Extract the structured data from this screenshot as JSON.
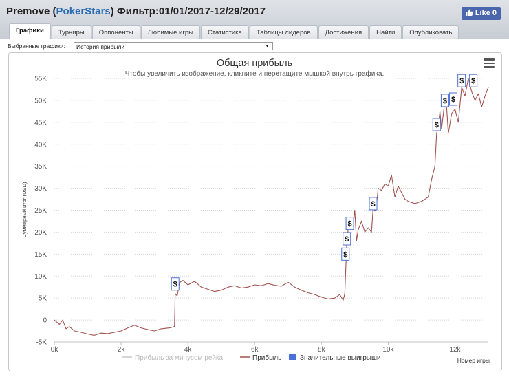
{
  "header": {
    "player": "Premove",
    "site": "PokerStars",
    "filter": "Фильтр:01/01/2017-12/29/2017",
    "like_label": "Like 0"
  },
  "tabs": [
    {
      "label": "Графики",
      "active": true
    },
    {
      "label": "Турниры",
      "active": false
    },
    {
      "label": "Оппоненты",
      "active": false
    },
    {
      "label": "Любимые игры",
      "active": false
    },
    {
      "label": "Статистика",
      "active": false
    },
    {
      "label": "Таблицы лидеров",
      "active": false
    },
    {
      "label": "Достижения",
      "active": false
    },
    {
      "label": "Найти",
      "active": false
    },
    {
      "label": "Опубликовать",
      "active": false
    }
  ],
  "graph_selector": {
    "label": "Выбранные графики:",
    "selected": "История прибыли"
  },
  "menu_icon": "hamburger-menu-icon",
  "colors": {
    "profit_line": "#a0524f",
    "rake_line": "#c8c8c8",
    "big_win_marker": "#4a6fd6",
    "header_site": "#2a6db3",
    "like_button": "#4a66ad"
  },
  "chart_data": {
    "type": "line",
    "title": "Общая прибыль",
    "subtitle": "Чтобы увеличить изображение, кликните и перетащите мышкой внутрь графика.",
    "xlabel": "Номер игры",
    "ylabel": "Суммарный итог (USD)",
    "xlim": [
      0,
      13000
    ],
    "ylim": [
      -5000,
      55000
    ],
    "x_ticks": [
      0,
      2000,
      4000,
      6000,
      8000,
      10000,
      12000
    ],
    "x_tick_labels": [
      "0k",
      "2k",
      "4k",
      "6k",
      "8k",
      "10k",
      "12k"
    ],
    "y_ticks": [
      -5000,
      0,
      5000,
      10000,
      15000,
      20000,
      25000,
      30000,
      35000,
      40000,
      45000,
      50000,
      55000
    ],
    "y_tick_labels": [
      "-5K",
      "0",
      "5K",
      "10K",
      "15K",
      "20K",
      "25K",
      "30K",
      "35K",
      "40K",
      "45K",
      "50K",
      "55K"
    ],
    "grid": true,
    "legend_position": "bottom",
    "legend": [
      "Прибыль за минусом рейка",
      "Прибыль",
      "Значительные выигрыши"
    ],
    "series": [
      {
        "name": "Прибыль",
        "x": [
          0,
          150,
          250,
          350,
          450,
          600,
          800,
          1000,
          1200,
          1400,
          1600,
          1800,
          2000,
          2200,
          2400,
          2600,
          2800,
          3000,
          3200,
          3450,
          3600,
          3620,
          3680,
          3750,
          3850,
          4000,
          4200,
          4400,
          4600,
          4800,
          5000,
          5200,
          5400,
          5600,
          5800,
          6000,
          6200,
          6400,
          6600,
          6800,
          7000,
          7200,
          7400,
          7600,
          7800,
          8000,
          8200,
          8400,
          8550,
          8650,
          8700,
          8720,
          8760,
          8800,
          8850,
          8950,
          9000,
          9050,
          9100,
          9200,
          9300,
          9400,
          9500,
          9550,
          9600,
          9650,
          9700,
          9800,
          9900,
          10000,
          10100,
          10200,
          10300,
          10400,
          10500,
          10600,
          10800,
          11000,
          11200,
          11300,
          11400,
          11450,
          11500,
          11550,
          11600,
          11700,
          11750,
          11800,
          11900,
          12000,
          12100,
          12200,
          12300,
          12400,
          12500,
          12600,
          12700,
          12800,
          12900,
          13000
        ],
        "values": [
          0,
          -1000,
          0,
          -2000,
          -1500,
          -2500,
          -2800,
          -3200,
          -3500,
          -3000,
          -3100,
          -2800,
          -2500,
          -1800,
          -1200,
          -1800,
          -2200,
          -2500,
          -2000,
          -1800,
          -1500,
          6000,
          5500,
          8500,
          9000,
          8000,
          8800,
          7500,
          7000,
          6500,
          6800,
          7500,
          7800,
          7300,
          7500,
          8000,
          7800,
          8300,
          7900,
          7700,
          8600,
          7500,
          6800,
          6200,
          5800,
          5200,
          4800,
          5000,
          5800,
          4500,
          6000,
          10000,
          17500,
          20500,
          22000,
          21500,
          25000,
          18000,
          20500,
          22500,
          20000,
          21000,
          20000,
          25500,
          24800,
          26000,
          30000,
          29500,
          31000,
          30500,
          33000,
          28000,
          30500,
          29000,
          27500,
          27000,
          26500,
          27000,
          28000,
          32000,
          35000,
          42500,
          44000,
          47500,
          43500,
          50000,
          48500,
          42500,
          47000,
          48000,
          45000,
          53000,
          51000,
          55000,
          52000,
          50000,
          51500,
          48500,
          51000,
          53000
        ]
      }
    ],
    "big_wins": [
      {
        "x": 3620,
        "y": 8200
      },
      {
        "x": 8720,
        "y": 15000
      },
      {
        "x": 8760,
        "y": 18500
      },
      {
        "x": 8850,
        "y": 22000
      },
      {
        "x": 9550,
        "y": 26500
      },
      {
        "x": 11450,
        "y": 44500
      },
      {
        "x": 11700,
        "y": 50000
      },
      {
        "x": 11950,
        "y": 50300
      },
      {
        "x": 12200,
        "y": 54500
      },
      {
        "x": 12550,
        "y": 54500
      }
    ],
    "big_win_label": "$"
  }
}
